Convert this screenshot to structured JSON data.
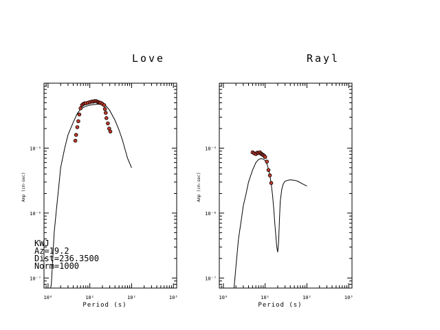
{
  "chart_data": [
    {
      "type": "scatter",
      "title": "Love",
      "xlabel": "Period (s)",
      "ylabel": "Amp (cm-sec)",
      "xscale": "log",
      "yscale": "log",
      "xlim": [
        0.8,
        1200
      ],
      "ylim": [
        7e-08,
        0.0001
      ],
      "x_ticks": [
        {
          "value": 1,
          "label": "10⁰"
        },
        {
          "value": 10,
          "label": "10¹"
        },
        {
          "value": 100,
          "label": "10²"
        },
        {
          "value": 1000,
          "label": "10³"
        }
      ],
      "y_ticks": [
        {
          "value": 1e-07,
          "label": "10⁻⁷"
        },
        {
          "value": 1e-06,
          "label": "10⁻⁶"
        },
        {
          "value": 1e-05,
          "label": "10⁻⁵"
        }
      ],
      "series": [
        {
          "kind": "line",
          "color": "#000000",
          "x": [
            1.0,
            1.1,
            1.2,
            1.4,
            1.6,
            1.8,
            2.0,
            2.5,
            3.0,
            4.0,
            5.0,
            6.0,
            8.0,
            10.0,
            13.0,
            16.0,
            20.0,
            25.0,
            30.0,
            40.0,
            50.0,
            60.0,
            70.0,
            80.0,
            100.0
          ],
          "y": [
            6e-08,
            6e-08,
            8e-08,
            5e-07,
            1.2e-06,
            2.5e-06,
            5e-06,
            1e-05,
            1.6e-05,
            2.5e-05,
            3.4e-05,
            4e-05,
            4.4e-05,
            4.6e-05,
            4.7e-05,
            4.75e-05,
            4.7e-05,
            4.4e-05,
            3.8e-05,
            2.7e-05,
            1.9e-05,
            1.35e-05,
            9.5e-06,
            7e-06,
            5e-06
          ]
        },
        {
          "kind": "points",
          "color": "#c0392b",
          "x": [
            4.5,
            4.7,
            5.0,
            5.3,
            5.6,
            6.0,
            6.5,
            7.0,
            7.5,
            8.0,
            9.0,
            10.0,
            11.0,
            12.0,
            13.0,
            14.0,
            15.0,
            16.0,
            17.0,
            18.0,
            20.0,
            22.0,
            23.0,
            24.0,
            25.0,
            27.0,
            29.0,
            31.0
          ],
          "y": [
            1.3e-05,
            1.6e-05,
            2.1e-05,
            2.6e-05,
            3.3e-05,
            4.1e-05,
            4.6e-05,
            4.8e-05,
            4.9e-05,
            4.9e-05,
            5e-05,
            5.1e-05,
            5.2e-05,
            5.2e-05,
            5.3e-05,
            5.3e-05,
            5.2e-05,
            5.1e-05,
            5e-05,
            5e-05,
            4.8e-05,
            4.6e-05,
            4e-05,
            3.5e-05,
            2.9e-05,
            2.4e-05,
            2e-05,
            1.8e-05
          ]
        }
      ],
      "annotations": [
        "KWJ",
        "Az=19.2",
        "Dist=236.3500",
        "Norm=1000"
      ]
    },
    {
      "type": "scatter",
      "title": "Rayl",
      "xlabel": "Period (s)",
      "ylabel": "Amp (cm-sec)",
      "xscale": "log",
      "yscale": "log",
      "xlim": [
        0.8,
        1200
      ],
      "ylim": [
        7e-08,
        0.0001
      ],
      "x_ticks": [
        {
          "value": 1,
          "label": "10⁰"
        },
        {
          "value": 10,
          "label": "10¹"
        },
        {
          "value": 100,
          "label": "10²"
        },
        {
          "value": 1000,
          "label": "10³"
        }
      ],
      "y_ticks": [
        {
          "value": 1e-07,
          "label": "10⁻⁷"
        },
        {
          "value": 1e-06,
          "label": "10⁻⁶"
        },
        {
          "value": 1e-05,
          "label": "10⁻⁵"
        }
      ],
      "series": [
        {
          "kind": "line",
          "color": "#000000",
          "x": [
            1.8,
            2.0,
            2.3,
            2.7,
            3.0,
            3.5,
            4.0,
            5.0,
            6.0,
            7.0,
            8.0,
            9.0,
            10.0,
            11.0,
            12.0,
            13.0,
            14.0,
            15.0,
            16.0,
            17.0,
            18.0,
            19.0,
            20.0,
            21.0,
            22.0,
            23.0,
            25.0,
            27.0,
            30.0,
            35.0,
            40.0,
            50.0,
            60.0,
            80.0,
            100.0
          ],
          "y": [
            7e-08,
            1.5e-07,
            4e-07,
            8e-07,
            1.3e-06,
            2e-06,
            3e-06,
            4.6e-06,
            6e-06,
            6.7e-06,
            6.9e-06,
            6.8e-06,
            6.4e-06,
            5.7e-06,
            4.8e-06,
            3.8e-06,
            2.8e-06,
            1.9e-06,
            1.2e-06,
            7e-07,
            4.5e-07,
            3e-07,
            2.5e-07,
            3.5e-07,
            8e-07,
            1.5e-06,
            2.3e-06,
            2.8e-06,
            3.1e-06,
            3.2e-06,
            3.25e-06,
            3.2e-06,
            3.1e-06,
            2.8e-06,
            2.6e-06
          ]
        },
        {
          "kind": "points",
          "color": "#c0392b",
          "x": [
            5.0,
            5.5,
            6.0,
            6.5,
            7.0,
            7.5,
            8.0,
            8.5,
            9.0,
            9.5,
            10.0,
            11.0,
            12.0,
            13.0,
            14.0
          ],
          "y": [
            8.6e-06,
            8.3e-06,
            8.1e-06,
            8.5e-06,
            8.4e-06,
            8.6e-06,
            8.2e-06,
            8e-06,
            7.8e-06,
            7.6e-06,
            7.3e-06,
            6.2e-06,
            4.6e-06,
            3.8e-06,
            2.9e-06
          ]
        }
      ]
    }
  ]
}
